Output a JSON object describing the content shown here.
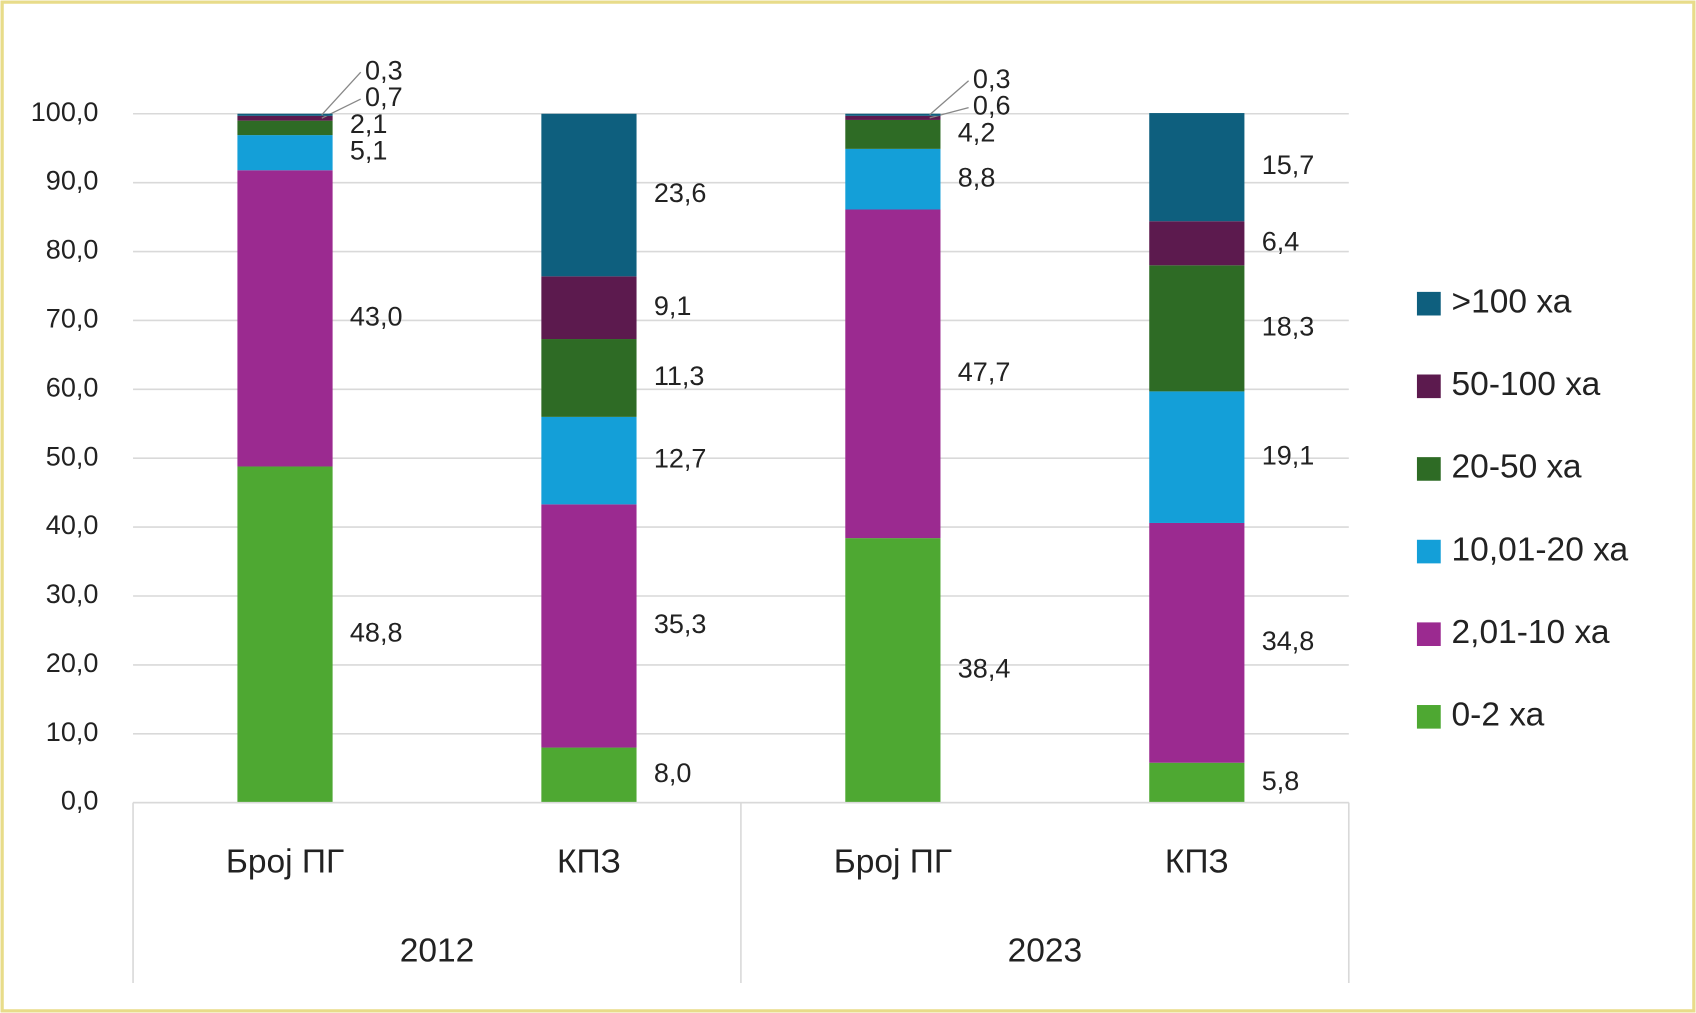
{
  "chart_data": {
    "type": "stacked_bar",
    "categories": [
      "Број ПГ",
      "КПЗ",
      "Број ПГ",
      "КПЗ"
    ],
    "groups": [
      "2012",
      "2023"
    ],
    "series": [
      {
        "name": "0-2 ха",
        "color": "#4ea832",
        "values": [
          48.8,
          8.0,
          38.4,
          5.8
        ],
        "value_labels": [
          "48,8",
          "8,0",
          "38,4",
          "5,8"
        ]
      },
      {
        "name": "2,01-10 ха",
        "color": "#9b2a90",
        "values": [
          43.0,
          35.3,
          47.7,
          34.8
        ],
        "value_labels": [
          "43,0",
          "35,3",
          "47,7",
          "34,8"
        ]
      },
      {
        "name": "10,01-20 ха",
        "color": "#149fd8",
        "values": [
          5.1,
          12.7,
          8.8,
          19.1
        ],
        "value_labels": [
          "5,1",
          "12,7",
          "8,8",
          "19,1"
        ]
      },
      {
        "name": "20-50 ха",
        "color": "#2e6b25",
        "values": [
          2.1,
          11.3,
          4.2,
          18.3
        ],
        "value_labels": [
          "2,1",
          "11,3",
          "4,2",
          "18,3"
        ]
      },
      {
        "name": "50-100 ха",
        "color": "#5c1a4e",
        "values": [
          0.7,
          9.1,
          0.6,
          6.4
        ],
        "value_labels": [
          "0,7",
          "9,1",
          "0,6",
          "6,4"
        ]
      },
      {
        "name": ">100 ха",
        "color": "#0e5f7e",
        "values": [
          0.3,
          23.6,
          0.3,
          15.7
        ],
        "value_labels": [
          "0,3",
          "23,6",
          "0,3",
          "15,7"
        ]
      }
    ],
    "ylim": [
      0,
      100
    ],
    "yticks": [
      {
        "value": 0,
        "label": "0,0"
      },
      {
        "value": 10,
        "label": "10,0"
      },
      {
        "value": 20,
        "label": "20,0"
      },
      {
        "value": 30,
        "label": "30,0"
      },
      {
        "value": 40,
        "label": "40,0"
      },
      {
        "value": 50,
        "label": "50,0"
      },
      {
        "value": 60,
        "label": "60,0"
      },
      {
        "value": 70,
        "label": "70,0"
      },
      {
        "value": 80,
        "label": "80,0"
      },
      {
        "value": 90,
        "label": "90,0"
      },
      {
        "value": 100,
        "label": "100,0"
      }
    ],
    "grid": true,
    "legend": "right"
  }
}
